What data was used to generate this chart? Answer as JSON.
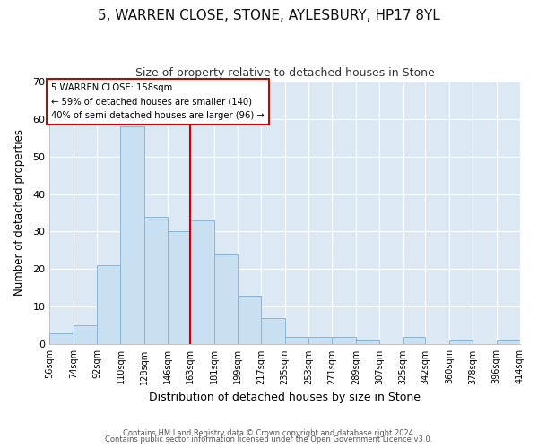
{
  "title": "5, WARREN CLOSE, STONE, AYLESBURY, HP17 8YL",
  "subtitle": "Size of property relative to detached houses in Stone",
  "xlabel": "Distribution of detached houses by size in Stone",
  "ylabel": "Number of detached properties",
  "bin_edges": [
    56,
    74,
    92,
    110,
    128,
    146,
    163,
    181,
    199,
    217,
    235,
    253,
    271,
    289,
    307,
    325,
    342,
    360,
    378,
    396,
    414
  ],
  "bar_heights": [
    3,
    5,
    21,
    58,
    34,
    30,
    33,
    24,
    13,
    7,
    2,
    2,
    2,
    1,
    0,
    2,
    0,
    1,
    0,
    1
  ],
  "bar_color": "#c9dff2",
  "bar_edge_color": "#8ab4d8",
  "reference_line_x": 163,
  "reference_line_color": "#cc0000",
  "annotation_text_line1": "5 WARREN CLOSE: 158sqm",
  "annotation_text_line2": "← 59% of detached houses are smaller (140)",
  "annotation_text_line3": "40% of semi-detached houses are larger (96) →",
  "annotation_box_color": "white",
  "annotation_box_edge_color": "#cc0000",
  "ylim": [
    0,
    70
  ],
  "yticks": [
    0,
    10,
    20,
    30,
    40,
    50,
    60,
    70
  ],
  "tick_labels": [
    "56sqm",
    "74sqm",
    "92sqm",
    "110sqm",
    "128sqm",
    "146sqm",
    "163sqm",
    "181sqm",
    "199sqm",
    "217sqm",
    "235sqm",
    "253sqm",
    "271sqm",
    "289sqm",
    "307sqm",
    "325sqm",
    "342sqm",
    "360sqm",
    "378sqm",
    "396sqm",
    "414sqm"
  ],
  "footer_line1": "Contains HM Land Registry data © Crown copyright and database right 2024.",
  "footer_line2": "Contains public sector information licensed under the Open Government Licence v3.0.",
  "fig_bg_color": "#ffffff",
  "plot_bg_color": "#dce9f5",
  "grid_color": "#ffffff",
  "title_fontsize": 11,
  "subtitle_fontsize": 9
}
